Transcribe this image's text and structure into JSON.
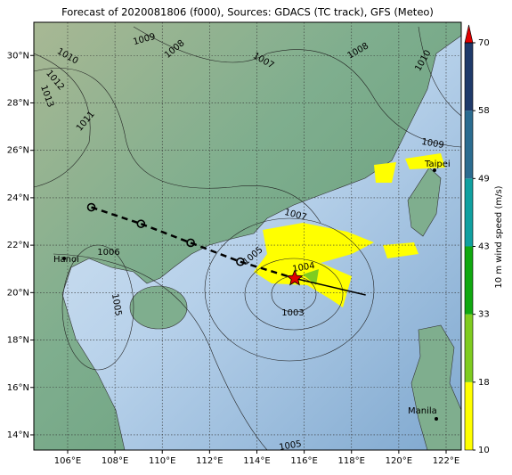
{
  "title": "Forecast of 2020081806 (f000), Sources: GDACS (TC track), GFS (Meteo)",
  "map": {
    "lonlim": [
      104.57,
      122.64
    ],
    "latlim": [
      13.36,
      31.4
    ],
    "xticks": [
      {
        "value": 106,
        "label": "106°E"
      },
      {
        "value": 108,
        "label": "108°E"
      },
      {
        "value": 110,
        "label": "110°E"
      },
      {
        "value": 112,
        "label": "112°E"
      },
      {
        "value": 114,
        "label": "114°E"
      },
      {
        "value": 116,
        "label": "116°E"
      },
      {
        "value": 118,
        "label": "118°E"
      },
      {
        "value": 120,
        "label": "120°E"
      },
      {
        "value": 122,
        "label": "122°E"
      }
    ],
    "yticks": [
      {
        "value": 14,
        "label": "14°N"
      },
      {
        "value": 16,
        "label": "16°N"
      },
      {
        "value": 18,
        "label": "18°N"
      },
      {
        "value": 20,
        "label": "20°N"
      },
      {
        "value": 22,
        "label": "22°N"
      },
      {
        "value": 24,
        "label": "24°N"
      },
      {
        "value": 26,
        "label": "26°N"
      },
      {
        "value": 28,
        "label": "28°N"
      },
      {
        "value": 30,
        "label": "30°N"
      }
    ],
    "track": {
      "lon": [
        107.0,
        109.1,
        111.2,
        113.3,
        115.6,
        118.6
      ],
      "lat": [
        23.6,
        22.9,
        22.1,
        21.3,
        20.6,
        19.9
      ]
    },
    "cities": [
      "Hanoi",
      "Taipei",
      "Manila"
    ],
    "contour_labels": [
      "1009",
      "1008",
      "1007",
      "1008",
      "1010",
      "1010",
      "1012",
      "1013",
      "1011",
      "1009",
      "1007",
      "1006",
      "1005",
      "1004",
      "1003",
      "1005",
      "1005"
    ]
  },
  "colorbar": {
    "label": "10 m wind speed (m/s)",
    "ticks": [
      10,
      18,
      33,
      43,
      49,
      58,
      70
    ],
    "colors": [
      "#ffff00",
      "#7fcc20",
      "#10a810",
      "#10a0a0",
      "#2b6c90",
      "#1f3a6a"
    ],
    "extend_color": "#e00000"
  }
}
